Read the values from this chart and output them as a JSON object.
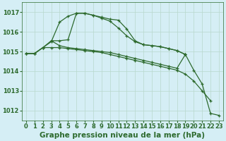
{
  "x": [
    0,
    1,
    2,
    3,
    4,
    5,
    6,
    7,
    8,
    9,
    10,
    11,
    12,
    13,
    14,
    15,
    16,
    17,
    18,
    19,
    20,
    21,
    22,
    23
  ],
  "line1": [
    1014.9,
    1014.9,
    1015.2,
    1015.5,
    1016.5,
    1016.8,
    1016.95,
    1016.95,
    1016.85,
    1016.7,
    1016.55,
    1016.2,
    1015.8,
    1015.5,
    1015.35,
    1015.3,
    1015.25,
    1015.15,
    1015.05,
    1014.85,
    null,
    null,
    null,
    null
  ],
  "line2": [
    1014.9,
    1014.9,
    1015.2,
    1015.55,
    1015.55,
    1015.6,
    1016.95,
    1016.95,
    1016.85,
    1016.75,
    1016.65,
    1016.6,
    1016.15,
    1015.55,
    1015.35,
    1015.3,
    1015.25,
    1015.15,
    1015.05,
    1014.85,
    1014.05,
    1013.35,
    1011.85,
    1011.75
  ],
  "line3": [
    null,
    null,
    null,
    1015.55,
    1015.3,
    1015.2,
    1015.15,
    1015.1,
    1015.05,
    1015.0,
    1014.95,
    1014.85,
    1014.75,
    1014.65,
    1014.55,
    1014.45,
    1014.35,
    1014.25,
    1014.15,
    1014.85,
    null,
    null,
    null,
    null
  ],
  "line4": [
    1014.9,
    1014.9,
    1015.2,
    1015.2,
    1015.2,
    1015.15,
    1015.1,
    1015.05,
    1015.0,
    1014.95,
    1014.85,
    1014.75,
    1014.65,
    1014.55,
    1014.45,
    1014.35,
    1014.25,
    1014.15,
    1014.05,
    1013.85,
    1013.5,
    1013.0,
    1012.5,
    null
  ],
  "bg_color": "#d5eef5",
  "grid_color": "#b8d8cc",
  "line_color": "#2d6a2d",
  "title": "Graphe pression niveau de la mer (hPa)",
  "ylim": [
    1011.5,
    1017.5
  ],
  "yticks": [
    1012,
    1013,
    1014,
    1015,
    1016,
    1017
  ],
  "xticks": [
    0,
    1,
    2,
    3,
    4,
    5,
    6,
    7,
    8,
    9,
    10,
    11,
    12,
    13,
    14,
    15,
    16,
    17,
    18,
    19,
    20,
    21,
    22,
    23
  ],
  "title_fontsize": 7.5,
  "tick_fontsize": 6.0
}
